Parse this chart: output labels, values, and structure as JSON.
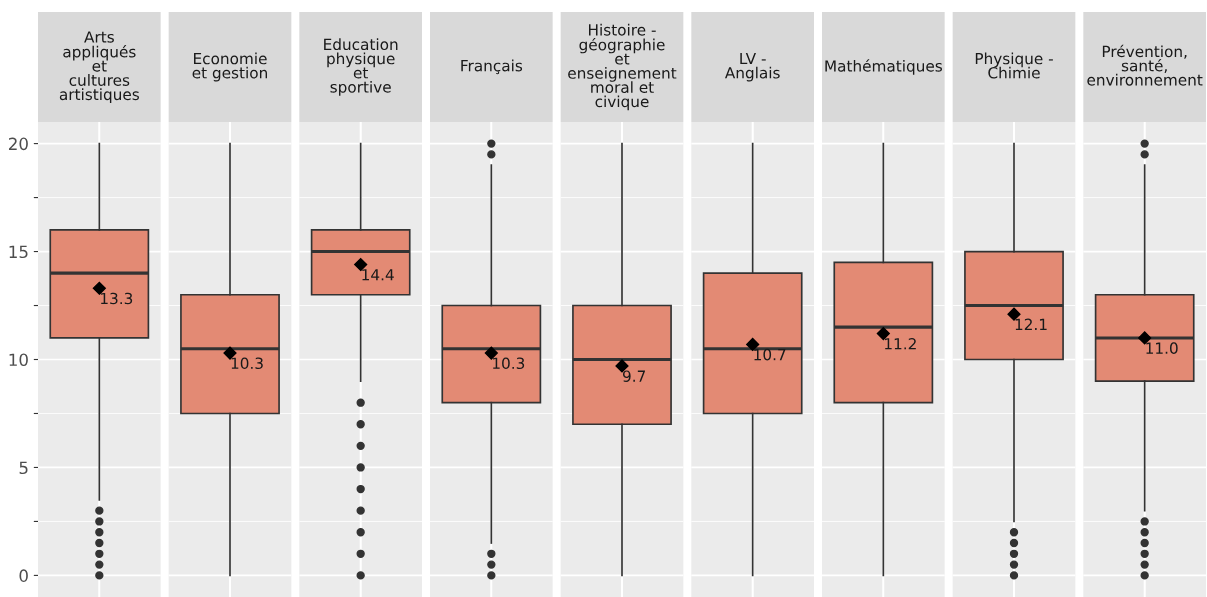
{
  "chart_data": {
    "type": "box",
    "categories": [
      "Arts\nappliqués\net\ncultures\nartistiques",
      "Economie\net gestion",
      "Education\nphysique\net\nsportive",
      "Français",
      "Histoire -\ngéographie\net\nenseignement\nmoral et\ncivique",
      "LV -\nAnglais",
      "Mathématiques",
      "Physique -\nChimie",
      "Prévention,\nsanté,\nenvironnement"
    ],
    "series": [
      {
        "color": "#e38a74",
        "value_labels": [
          "13.3",
          "10.3",
          "14.4",
          "10.3",
          "9.7",
          "10.7",
          "11.2",
          "12.1",
          "11.0"
        ],
        "boxes": [
          {
            "low": 3.5,
            "q1": 11,
            "median": 14,
            "q3": 16,
            "high": 20,
            "mean": 13.3,
            "outliers": [
              0,
              0.5,
              1,
              1.5,
              2,
              2.5,
              3
            ]
          },
          {
            "low": 0,
            "q1": 7.5,
            "median": 10.5,
            "q3": 13,
            "high": 20,
            "mean": 10.3
          },
          {
            "low": 9,
            "q1": 13,
            "median": 15,
            "q3": 16,
            "high": 20,
            "mean": 14.4,
            "outliers": [
              0,
              1,
              2,
              3,
              4,
              5,
              6,
              7,
              8
            ]
          },
          {
            "low": 1.5,
            "q1": 8,
            "median": 10.5,
            "q3": 12.5,
            "high": 19,
            "mean": 10.3,
            "outliers": [
              0,
              0.5,
              1,
              19.5,
              20
            ]
          },
          {
            "low": 0,
            "q1": 7,
            "median": 10,
            "q3": 12.5,
            "high": 20,
            "mean": 9.7
          },
          {
            "low": 0,
            "q1": 7.5,
            "median": 10.5,
            "q3": 14,
            "high": 20,
            "mean": 10.7
          },
          {
            "low": 0,
            "q1": 8,
            "median": 11.5,
            "q3": 14.5,
            "high": 20,
            "mean": 11.2
          },
          {
            "low": 2.5,
            "q1": 10,
            "median": 12.5,
            "q3": 15,
            "high": 20,
            "mean": 12.1,
            "outliers": [
              0,
              0.5,
              1,
              1.5,
              2
            ]
          },
          {
            "low": 3,
            "q1": 9,
            "median": 11,
            "q3": 13,
            "high": 19,
            "mean": 11.0,
            "outliers": [
              0,
              0.5,
              1,
              1.5,
              2,
              2.5,
              19.5,
              20
            ]
          }
        ]
      }
    ],
    "ylim": [
      -1,
      21
    ],
    "yticks": [
      0,
      {
        "value": 2.5,
        "label": null
      },
      5,
      {
        "value": 7.5,
        "label": null
      },
      10,
      {
        "value": 12.5,
        "label": null
      },
      15,
      {
        "value": 17.5,
        "label": null
      },
      20
    ],
    "grid": true,
    "marker": "diamond",
    "tick_labels": "y"
  }
}
